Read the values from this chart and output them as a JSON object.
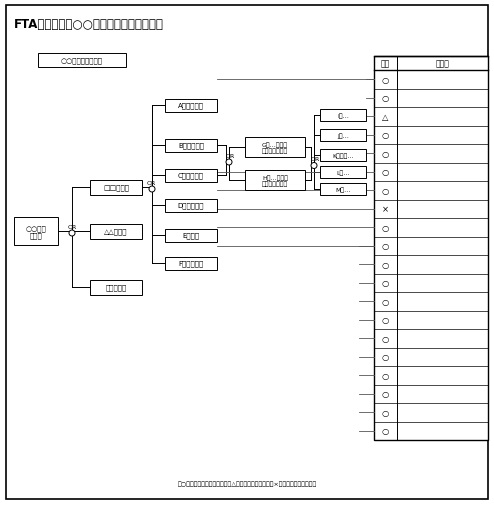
{
  "title": "FTA解析による○○設備の事故原因の調査",
  "bg_color": "#ffffff",
  "condition_box": "○○設備火災の場合",
  "root_box": "○○設備\nの火災",
  "l1_a": "□□の損傷",
  "l1_b": "△△の損傷",
  "l1_c": "＊＊の損傷",
  "l2_A": "Aによる発熱",
  "l2_B": "Bによる発熱",
  "l2_C": "Cによる損傷",
  "l2_D": "Dからの発熱",
  "l2_E": "Eの発熱",
  "l2_F": "Fによる損傷",
  "l3_G": "Gの…による\n～の発生・発熱",
  "l3_H": "Hの…による\n～の発生・発熱",
  "l4_I": "Iの…",
  "l4_J": "Jの…",
  "l4_K": "Kによる…",
  "l4_L": "Lの…",
  "l4_M": "Mの…",
  "judgment_col_label": "判定",
  "reason_col_label": "理　由",
  "judgments": [
    "○",
    "○",
    "△",
    "○",
    "○",
    "○",
    "○",
    "×",
    "○",
    "○",
    "○",
    "○",
    "○",
    "○",
    "○",
    "○",
    "○",
    "○",
    "○",
    "○"
  ],
  "footer_text": "（○：原因となり得ないもの　△：やや疑われるもの　×：原因と云えるもの）"
}
